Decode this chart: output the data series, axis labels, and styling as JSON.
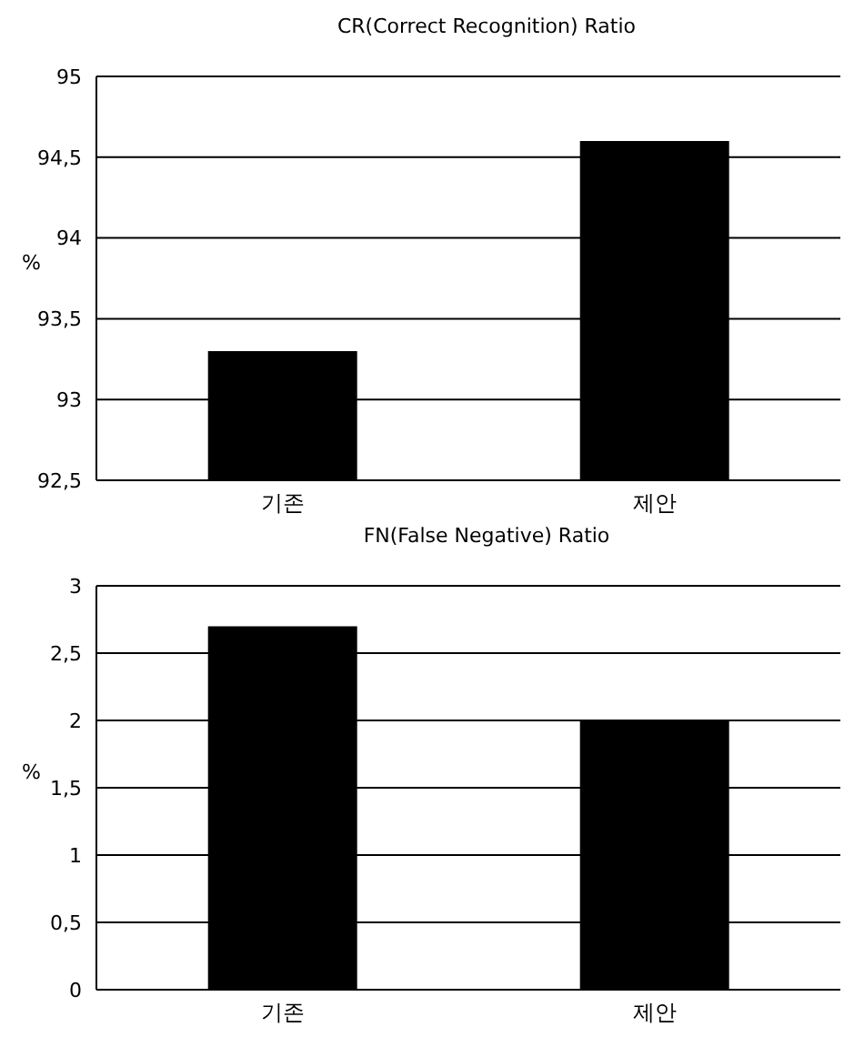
{
  "chart_data": [
    {
      "type": "bar",
      "title": "CR(Correct Recognition) Ratio",
      "ylabel": "%",
      "categories": [
        "기존",
        "제안"
      ],
      "values": [
        93.3,
        94.6
      ],
      "color": "#000000",
      "ylim": [
        92.5,
        95
      ],
      "yticks": [
        {
          "value": 92.5,
          "label": "92,5"
        },
        93,
        {
          "value": 93.5,
          "label": "93,5"
        },
        94,
        {
          "value": 94.5,
          "label": "94,5"
        },
        95
      ],
      "grid": "y"
    },
    {
      "type": "bar",
      "title": "FN(False Negative) Ratio",
      "ylabel": "%",
      "categories": [
        "기존",
        "제안"
      ],
      "values": [
        2.7,
        2
      ],
      "color": "#000000",
      "ylim": [
        0,
        3
      ],
      "yticks": [
        0,
        {
          "value": 0.5,
          "label": "0,5"
        },
        1,
        {
          "value": 1.5,
          "label": "1,5"
        },
        2,
        {
          "value": 2.5,
          "label": "2,5"
        },
        3
      ],
      "grid": "y"
    }
  ]
}
